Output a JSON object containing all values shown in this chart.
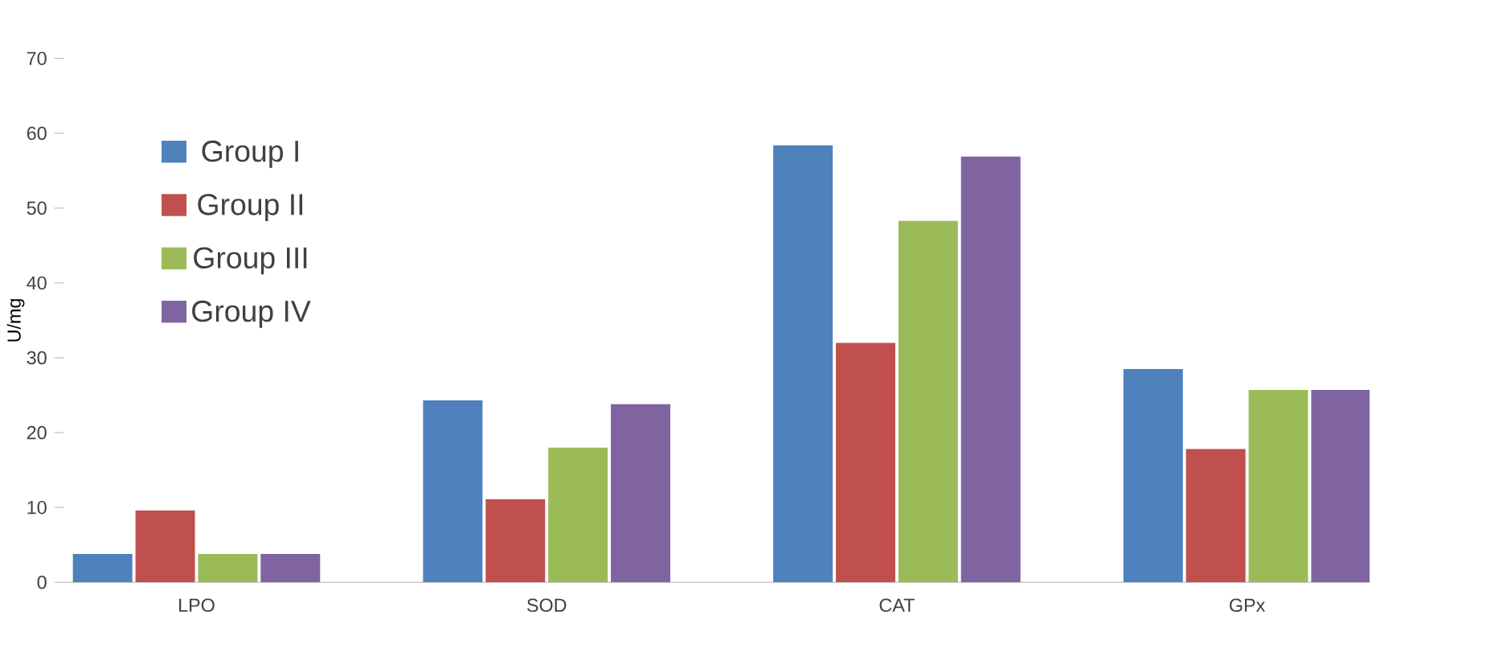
{
  "chart_data": {
    "type": "bar",
    "ylabel": "U/mg",
    "categories": [
      "LPO",
      "SOD",
      "CAT",
      "GPx"
    ],
    "series": [
      {
        "name": "Group I",
        "color": "#4f81bd",
        "values": [
          3.8,
          24.3,
          58.4,
          28.5
        ]
      },
      {
        "name": "Group II",
        "color": "#c0504d",
        "values": [
          9.6,
          11.1,
          32,
          17.8
        ]
      },
      {
        "name": "Group III",
        "color": "#9bbb59",
        "values": [
          3.8,
          18,
          48.3,
          25.7
        ]
      },
      {
        "name": "Group IV",
        "color": "#8064a2",
        "values": [
          3.8,
          23.8,
          56.9,
          25.7
        ]
      }
    ],
    "ylim": [
      0,
      70
    ],
    "yticks": [
      0,
      10,
      20,
      30,
      40,
      50,
      60,
      70
    ],
    "legend": "top left",
    "grid": false
  }
}
